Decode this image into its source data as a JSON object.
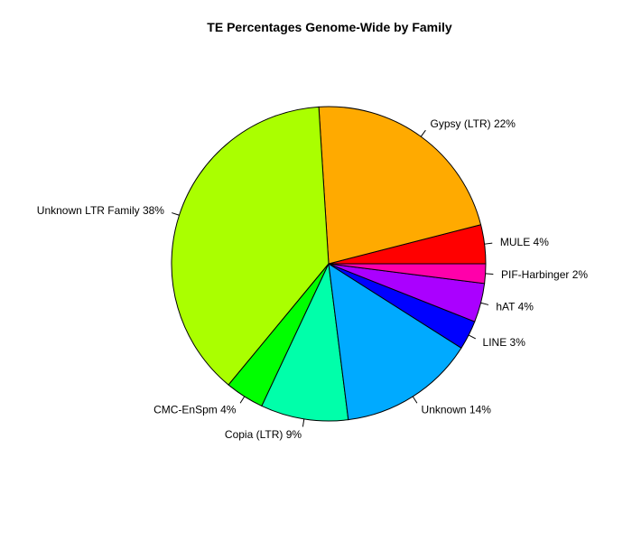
{
  "chart_data": {
    "type": "pie",
    "title": "TE Percentages Genome-Wide by Family",
    "direction": "counterclockwise",
    "start": "3 o'clock",
    "slices": [
      {
        "label": "MULE 4%",
        "value": 4,
        "color": "#ff0000"
      },
      {
        "label": "Gypsy (LTR) 22%",
        "value": 22,
        "color": "#ffaa00"
      },
      {
        "label": "Unknown LTR Family 38%",
        "value": 38,
        "color": "#aaff00"
      },
      {
        "label": "CMC-EnSpm 4%",
        "value": 4,
        "color": "#00ff00"
      },
      {
        "label": "Copia (LTR) 9%",
        "value": 9,
        "color": "#00ffaa"
      },
      {
        "label": "Unknown 14%",
        "value": 14,
        "color": "#00aaff"
      },
      {
        "label": "LINE 3%",
        "value": 3,
        "color": "#0000ff"
      },
      {
        "label": "hAT 4%",
        "value": 4,
        "color": "#aa00ff"
      },
      {
        "label": "PIF-Harbinger 2%",
        "value": 2,
        "color": "#ff00aa"
      }
    ]
  }
}
